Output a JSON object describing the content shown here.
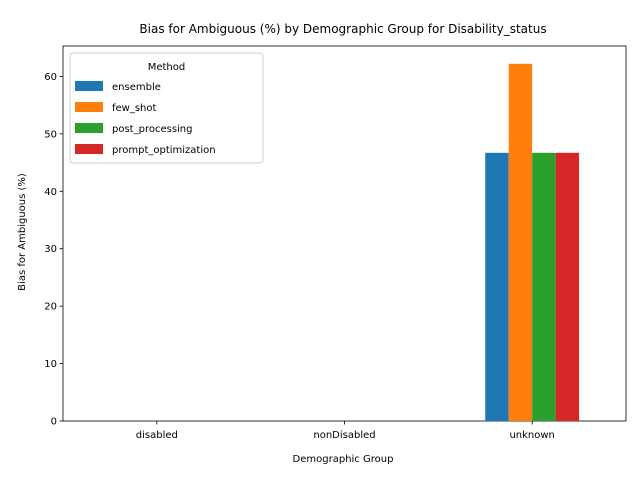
{
  "chart_data": {
    "type": "bar",
    "title": "Bias for Ambiguous (%) by Demographic Group for Disability_status",
    "xlabel": "Demographic Group",
    "ylabel": "Bias for Ambiguous (%)",
    "categories": [
      "disabled",
      "nonDisabled",
      "unknown"
    ],
    "ylim": [
      0,
      65.3
    ],
    "yticks": [
      0,
      10,
      20,
      30,
      40,
      50,
      60
    ],
    "legend_title": "Method",
    "legend_position": "top-left",
    "grid": false,
    "series": [
      {
        "name": "ensemble",
        "color": "#1f77b4",
        "values": [
          0,
          0,
          46.7
        ]
      },
      {
        "name": "few_shot",
        "color": "#ff7f0e",
        "values": [
          0,
          0,
          62.2
        ]
      },
      {
        "name": "post_processing",
        "color": "#2ca02c",
        "values": [
          0,
          0,
          46.7
        ]
      },
      {
        "name": "prompt_optimization",
        "color": "#d62728",
        "values": [
          0,
          0,
          46.7
        ]
      }
    ]
  }
}
